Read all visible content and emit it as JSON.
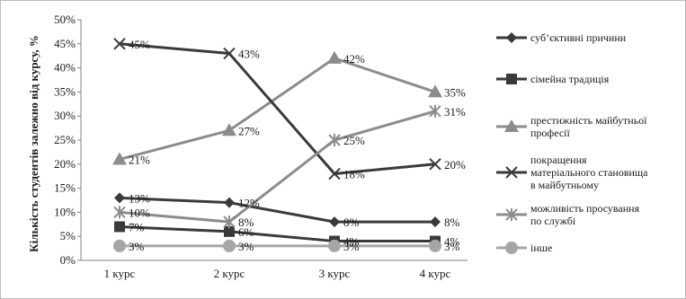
{
  "chart_data": {
    "type": "line",
    "title": "",
    "xlabel": "",
    "ylabel": "Кількість студентів залежно від курсу, %",
    "categories": [
      "1 курс",
      "2 курс",
      "3 курс",
      "4 курс"
    ],
    "ylim": [
      0,
      50
    ],
    "yticks": [
      0,
      5,
      10,
      15,
      20,
      25,
      30,
      35,
      40,
      45,
      50
    ],
    "ytick_labels": [
      "0%",
      "5%",
      "10%",
      "15%",
      "20%",
      "25%",
      "30%",
      "35%",
      "40%",
      "45%",
      "50%"
    ],
    "grid": false,
    "legend_position": "right",
    "series": [
      {
        "name": "суб’єктивні причини",
        "legend_lines": [
          "суб’єктивні причини"
        ],
        "values": [
          13,
          12,
          8,
          8
        ],
        "labels": [
          "13%",
          "12%",
          "8%",
          "8%"
        ],
        "color": "#3a3a3a",
        "marker": "diamond"
      },
      {
        "name": "сімейна традиція",
        "legend_lines": [
          "сімейна традиція"
        ],
        "values": [
          7,
          6,
          4,
          4
        ],
        "labels": [
          "7%",
          "6%",
          "4%",
          "4%"
        ],
        "color": "#3a3a3a",
        "marker": "square"
      },
      {
        "name": "престижність майбутньої професії",
        "legend_lines": [
          "престижність майбутньої",
          "професії"
        ],
        "values": [
          21,
          27,
          42,
          35
        ],
        "labels": [
          "21%",
          "27%",
          "42%",
          "35%"
        ],
        "color": "#8c8c8c",
        "marker": "triangle"
      },
      {
        "name": "покращення матеріального становища в майбутньому",
        "legend_lines": [
          "покращення",
          "матеріального становища",
          "в майбутньому"
        ],
        "values": [
          45,
          43,
          18,
          20
        ],
        "labels": [
          "45%",
          "43%",
          "18%",
          "20%"
        ],
        "color": "#3a3a3a",
        "marker": "x"
      },
      {
        "name": "можливість просування по службі",
        "legend_lines": [
          "можливість просування",
          "по службі"
        ],
        "values": [
          10,
          8,
          25,
          31
        ],
        "labels": [
          "10%",
          "8%",
          "25%",
          "31%"
        ],
        "color": "#8c8c8c",
        "marker": "star"
      },
      {
        "name": "інше",
        "legend_lines": [
          "інше"
        ],
        "values": [
          3,
          3,
          3,
          3
        ],
        "labels": [
          "3%",
          "3%",
          "3%",
          "3%"
        ],
        "color": "#a6a6a6",
        "marker": "circle"
      }
    ]
  }
}
